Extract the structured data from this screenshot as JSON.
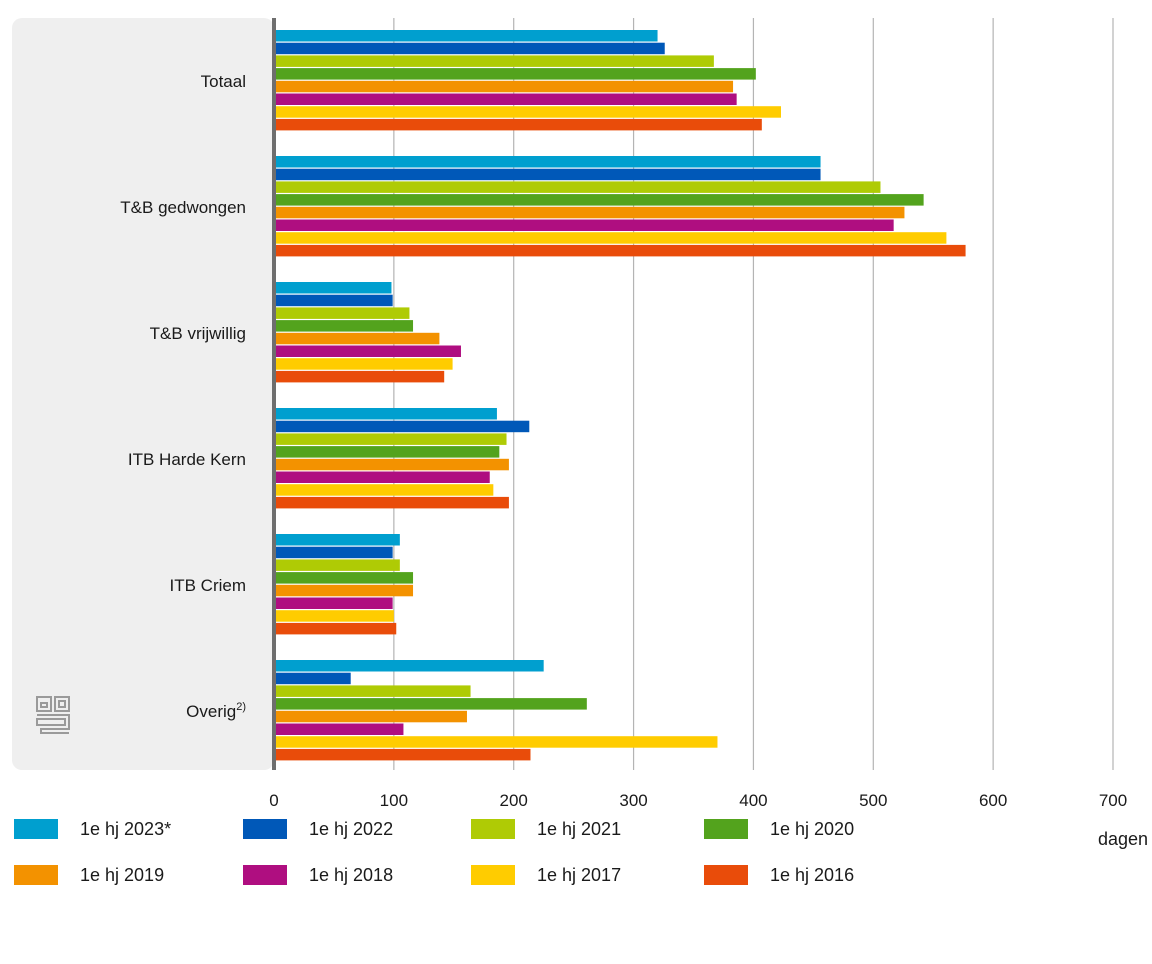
{
  "chart_data": {
    "type": "bar",
    "orientation": "horizontal",
    "categories": [
      "Totaal",
      "T&B gedwongen",
      "T&B vrijwillig",
      "ITB Harde Kern",
      "ITB Criem",
      "Overig"
    ],
    "category_suffix": {
      "Overig": "2)"
    },
    "series": [
      {
        "name": "1e hj 2023*",
        "color": "#009fcf",
        "values": [
          320,
          456,
          98,
          186,
          105,
          225
        ]
      },
      {
        "name": "1e hj 2022",
        "color": "#0058b8",
        "values": [
          326,
          456,
          99,
          213,
          99,
          64
        ]
      },
      {
        "name": "1e hj 2021",
        "color": "#afcb05",
        "values": [
          367,
          506,
          113,
          194,
          105,
          164
        ]
      },
      {
        "name": "1e hj 2020",
        "color": "#53a31d",
        "values": [
          402,
          542,
          116,
          188,
          116,
          261
        ]
      },
      {
        "name": "1e hj 2019",
        "color": "#f39200",
        "values": [
          383,
          526,
          138,
          196,
          116,
          161
        ]
      },
      {
        "name": "1e hj 2018",
        "color": "#af0e80",
        "values": [
          386,
          517,
          156,
          180,
          99,
          108
        ]
      },
      {
        "name": "1e hj 2017",
        "color": "#ffcc00",
        "values": [
          423,
          561,
          149,
          183,
          100,
          370
        ]
      },
      {
        "name": "1e hj 2016",
        "color": "#e94c0a",
        "values": [
          407,
          577,
          142,
          196,
          102,
          214
        ]
      }
    ],
    "xlim": [
      0,
      700
    ],
    "xticks": [
      0,
      100,
      200,
      300,
      400,
      500,
      600,
      700
    ],
    "xlabel": "dagen",
    "grid": true,
    "legend_position": "bottom"
  },
  "colors": {
    "panel_background": "#efefef",
    "gridline": "#b4b4b4",
    "axis": "#6e6e6e",
    "logo": "#9a9a9a"
  },
  "logo": {
    "icon": "cbs-logo-icon"
  }
}
